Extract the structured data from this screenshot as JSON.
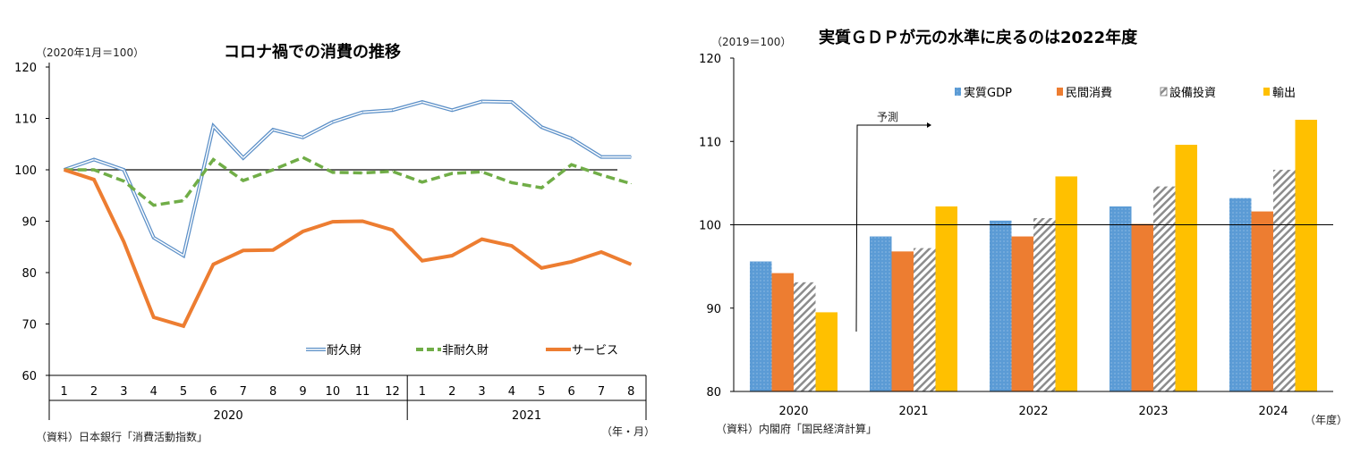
{
  "chart_data": [
    {
      "type": "line",
      "title": "コロナ禍での消費の推移",
      "ylabel": "（2020年1月＝100）",
      "xlabel": "（年・月）",
      "source": "（資料）日本銀行「消費活動指数」",
      "ylim": [
        60,
        120
      ],
      "yticks": [
        60,
        70,
        80,
        90,
        100,
        110,
        120
      ],
      "months": [
        "1",
        "2",
        "3",
        "4",
        "5",
        "6",
        "7",
        "8",
        "9",
        "10",
        "11",
        "12",
        "1",
        "2",
        "3",
        "4",
        "5",
        "6",
        "7",
        "8"
      ],
      "years": [
        {
          "label": "2020",
          "span": 12
        },
        {
          "label": "2021",
          "span": 8
        }
      ],
      "reference_line": 100,
      "legend_position": "bottom-right",
      "series": [
        {
          "name": "耐久財",
          "color": "#5b8fc7",
          "style": "double",
          "values": [
            100,
            102,
            100,
            86.8,
            83.3,
            108.5,
            102.3,
            107.8,
            106.3,
            109.3,
            111.2,
            111.6,
            113.2,
            111.6,
            113.3,
            113.2,
            108.3,
            106.1,
            102.5,
            102.5
          ]
        },
        {
          "name": "非耐久財",
          "color": "#70ad47",
          "style": "dashed",
          "values": [
            100,
            100,
            97.8,
            93.1,
            94,
            102,
            97.9,
            100,
            102.4,
            99.5,
            99.4,
            99.7,
            97.6,
            99.3,
            99.6,
            97.5,
            96.5,
            101,
            99,
            97.3
          ]
        },
        {
          "name": "サービス",
          "color": "#ed7d31",
          "style": "solid",
          "values": [
            100,
            98.1,
            86,
            71.3,
            69.6,
            81.6,
            84.3,
            84.4,
            88,
            89.9,
            90,
            88.3,
            82.3,
            83.3,
            86.5,
            85.2,
            80.9,
            82.1,
            84,
            81.6
          ]
        }
      ]
    },
    {
      "type": "bar",
      "title": "実質ＧＤＰが元の水準に戻るのは2022年度",
      "ylabel": "（2019＝100）",
      "xlabel": "（年度）",
      "source": "（資料）内閣府「国民経済計算」",
      "annotation": "予測",
      "ylim": [
        80,
        120
      ],
      "yticks": [
        80,
        90,
        100,
        110,
        120
      ],
      "categories": [
        "2020",
        "2021",
        "2022",
        "2023",
        "2024"
      ],
      "reference_line": 100,
      "legend_position": "top-right",
      "series": [
        {
          "name": "実質GDP",
          "color": "#5b9bd5",
          "values": [
            95.6,
            98.6,
            100.5,
            102.2,
            103.2
          ]
        },
        {
          "name": "民間消費",
          "color": "#ed7d31",
          "values": [
            94.2,
            96.8,
            98.6,
            100.1,
            101.6
          ]
        },
        {
          "name": "設備投資",
          "color": "#a6a6a6",
          "values": [
            93.1,
            97.2,
            100.8,
            104.6,
            106.6
          ]
        },
        {
          "name": "輸出",
          "color": "#ffc000",
          "values": [
            89.5,
            102.2,
            105.8,
            109.6,
            112.6
          ]
        }
      ]
    }
  ]
}
